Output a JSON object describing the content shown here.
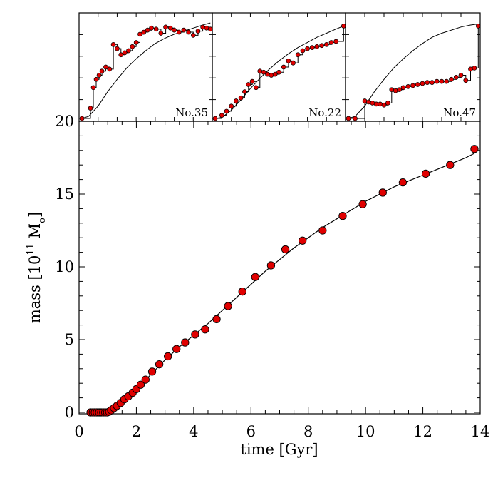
{
  "chart_data": [
    {
      "id": "main",
      "type": "scatter",
      "xlabel": "time [Gyr]",
      "ylabel": "mass [10^11 M_o]",
      "ylabel_parts": {
        "prefix": "mass [10",
        "sup": "11",
        "mid": " M",
        "sub": "o",
        "suffix": "]"
      },
      "xlim": [
        0,
        14
      ],
      "ylim": [
        0,
        20
      ],
      "xticks": [
        0,
        2,
        4,
        6,
        8,
        10,
        12,
        14
      ],
      "yticks": [
        0,
        5,
        10,
        15,
        20
      ],
      "marker_color": "#e00000",
      "points": [
        [
          0.4,
          0
        ],
        [
          0.48,
          0
        ],
        [
          0.55,
          0
        ],
        [
          0.62,
          0
        ],
        [
          0.7,
          0
        ],
        [
          0.77,
          0
        ],
        [
          0.84,
          0
        ],
        [
          0.91,
          0
        ],
        [
          0.98,
          0
        ],
        [
          1.05,
          0.05
        ],
        [
          1.12,
          0.15
        ],
        [
          1.22,
          0.3
        ],
        [
          1.32,
          0.45
        ],
        [
          1.45,
          0.65
        ],
        [
          1.58,
          0.9
        ],
        [
          1.72,
          1.1
        ],
        [
          1.87,
          1.35
        ],
        [
          2.0,
          1.6
        ],
        [
          2.15,
          1.9
        ],
        [
          2.32,
          2.25
        ],
        [
          2.55,
          2.8
        ],
        [
          2.8,
          3.3
        ],
        [
          3.1,
          3.85
        ],
        [
          3.4,
          4.35
        ],
        [
          3.7,
          4.8
        ],
        [
          4.05,
          5.35
        ],
        [
          4.4,
          5.7
        ],
        [
          4.8,
          6.4
        ],
        [
          5.2,
          7.3
        ],
        [
          5.7,
          8.3
        ],
        [
          6.15,
          9.3
        ],
        [
          6.7,
          10.1
        ],
        [
          7.2,
          11.2
        ],
        [
          7.8,
          11.8
        ],
        [
          8.5,
          12.5
        ],
        [
          9.2,
          13.5
        ],
        [
          9.9,
          14.3
        ],
        [
          10.6,
          15.1
        ],
        [
          11.3,
          15.8
        ],
        [
          12.1,
          16.4
        ],
        [
          12.95,
          17.0
        ],
        [
          13.8,
          18.1
        ]
      ],
      "curve": [
        [
          0.4,
          0
        ],
        [
          0.7,
          0
        ],
        [
          1.0,
          0.02
        ],
        [
          1.2,
          0.2
        ],
        [
          1.5,
          0.6
        ],
        [
          2.0,
          1.5
        ],
        [
          2.5,
          2.6
        ],
        [
          3.0,
          3.6
        ],
        [
          3.5,
          4.5
        ],
        [
          4.0,
          5.3
        ],
        [
          4.5,
          6.1
        ],
        [
          5.0,
          7.0
        ],
        [
          5.5,
          7.9
        ],
        [
          6.0,
          8.8
        ],
        [
          6.5,
          9.7
        ],
        [
          7.0,
          10.5
        ],
        [
          7.5,
          11.3
        ],
        [
          8.0,
          12.0
        ],
        [
          8.5,
          12.7
        ],
        [
          9.0,
          13.3
        ],
        [
          9.5,
          13.9
        ],
        [
          10.0,
          14.5
        ],
        [
          10.5,
          15.0
        ],
        [
          11.0,
          15.5
        ],
        [
          11.5,
          15.9
        ],
        [
          12.0,
          16.3
        ],
        [
          12.5,
          16.7
        ],
        [
          13.0,
          17.1
        ],
        [
          13.5,
          17.5
        ],
        [
          13.8,
          17.8
        ]
      ]
    },
    {
      "id": "inset1",
      "type": "line",
      "label": "No.35",
      "xlim": [
        0,
        14
      ],
      "ylim": [
        0,
        1
      ],
      "steps": [
        [
          0.3,
          0
        ],
        [
          1.2,
          0.1
        ],
        [
          1.5,
          0.3
        ],
        [
          1.8,
          0.38
        ],
        [
          2.1,
          0.42
        ],
        [
          2.4,
          0.46
        ],
        [
          2.8,
          0.5
        ],
        [
          3.2,
          0.48
        ],
        [
          3.6,
          0.72
        ],
        [
          4.0,
          0.68
        ],
        [
          4.4,
          0.62
        ],
        [
          4.8,
          0.64
        ],
        [
          5.2,
          0.66
        ],
        [
          5.6,
          0.7
        ],
        [
          6.0,
          0.74
        ],
        [
          6.4,
          0.82
        ],
        [
          6.8,
          0.84
        ],
        [
          7.2,
          0.86
        ],
        [
          7.6,
          0.88
        ],
        [
          8.1,
          0.87
        ],
        [
          8.6,
          0.83
        ],
        [
          9.1,
          0.89
        ],
        [
          9.6,
          0.88
        ],
        [
          10.0,
          0.86
        ],
        [
          10.5,
          0.84
        ],
        [
          11.0,
          0.86
        ],
        [
          11.5,
          0.84
        ],
        [
          12.0,
          0.81
        ],
        [
          12.5,
          0.85
        ],
        [
          13.0,
          0.89
        ],
        [
          13.4,
          0.88
        ],
        [
          13.8,
          0.87
        ]
      ],
      "curve": [
        [
          0.3,
          0
        ],
        [
          1.0,
          0.02
        ],
        [
          2.0,
          0.12
        ],
        [
          3.0,
          0.26
        ],
        [
          4.0,
          0.38
        ],
        [
          5.0,
          0.49
        ],
        [
          6.0,
          0.58
        ],
        [
          7.0,
          0.66
        ],
        [
          8.0,
          0.73
        ],
        [
          9.0,
          0.78
        ],
        [
          10.0,
          0.82
        ],
        [
          11.0,
          0.85
        ],
        [
          12.0,
          0.88
        ],
        [
          13.0,
          0.91
        ],
        [
          13.8,
          0.93
        ]
      ]
    },
    {
      "id": "inset2",
      "type": "line",
      "label": "No.22",
      "xlim": [
        0,
        14
      ],
      "ylim": [
        0,
        1
      ],
      "steps": [
        [
          0.3,
          0
        ],
        [
          1.0,
          0.03
        ],
        [
          1.5,
          0.07
        ],
        [
          2.0,
          0.12
        ],
        [
          2.5,
          0.17
        ],
        [
          3.0,
          0.2
        ],
        [
          3.4,
          0.26
        ],
        [
          3.8,
          0.33
        ],
        [
          4.2,
          0.36
        ],
        [
          4.6,
          0.3
        ],
        [
          5.0,
          0.46
        ],
        [
          5.4,
          0.45
        ],
        [
          5.8,
          0.43
        ],
        [
          6.2,
          0.42
        ],
        [
          6.6,
          0.43
        ],
        [
          7.0,
          0.45
        ],
        [
          7.5,
          0.5
        ],
        [
          8.0,
          0.56
        ],
        [
          8.5,
          0.54
        ],
        [
          9.0,
          0.62
        ],
        [
          9.5,
          0.66
        ],
        [
          10.0,
          0.68
        ],
        [
          10.5,
          0.69
        ],
        [
          11.0,
          0.7
        ],
        [
          11.5,
          0.71
        ],
        [
          12.0,
          0.72
        ],
        [
          12.5,
          0.74
        ],
        [
          13.0,
          0.75
        ],
        [
          13.8,
          0.9
        ]
      ],
      "curve": [
        [
          0.3,
          0
        ],
        [
          1.0,
          0.01
        ],
        [
          2.0,
          0.08
        ],
        [
          3.0,
          0.18
        ],
        [
          4.0,
          0.29
        ],
        [
          5.0,
          0.39
        ],
        [
          6.0,
          0.48
        ],
        [
          7.0,
          0.56
        ],
        [
          8.0,
          0.63
        ],
        [
          9.0,
          0.69
        ],
        [
          10.0,
          0.74
        ],
        [
          11.0,
          0.79
        ],
        [
          12.0,
          0.83
        ],
        [
          13.0,
          0.87
        ],
        [
          13.8,
          0.9
        ]
      ]
    },
    {
      "id": "inset3",
      "type": "line",
      "label": "No.47",
      "xlim": [
        0,
        14
      ],
      "ylim": [
        0,
        1
      ],
      "steps": [
        [
          0.3,
          0
        ],
        [
          1.0,
          0
        ],
        [
          2.0,
          0.17
        ],
        [
          2.4,
          0.16
        ],
        [
          2.8,
          0.15
        ],
        [
          3.2,
          0.14
        ],
        [
          3.6,
          0.14
        ],
        [
          4.0,
          0.13
        ],
        [
          4.4,
          0.15
        ],
        [
          4.8,
          0.28
        ],
        [
          5.2,
          0.27
        ],
        [
          5.6,
          0.28
        ],
        [
          6.0,
          0.3
        ],
        [
          6.5,
          0.31
        ],
        [
          7.0,
          0.32
        ],
        [
          7.5,
          0.33
        ],
        [
          8.0,
          0.34
        ],
        [
          8.5,
          0.35
        ],
        [
          9.0,
          0.35
        ],
        [
          9.5,
          0.36
        ],
        [
          10.0,
          0.36
        ],
        [
          10.5,
          0.36
        ],
        [
          11.0,
          0.38
        ],
        [
          11.5,
          0.4
        ],
        [
          12.0,
          0.42
        ],
        [
          12.5,
          0.37
        ],
        [
          13.0,
          0.48
        ],
        [
          13.4,
          0.49
        ],
        [
          13.8,
          0.9
        ]
      ],
      "curve": [
        [
          0.3,
          0
        ],
        [
          1.0,
          0.02
        ],
        [
          2.0,
          0.12
        ],
        [
          3.0,
          0.26
        ],
        [
          4.0,
          0.38
        ],
        [
          5.0,
          0.49
        ],
        [
          6.0,
          0.58
        ],
        [
          7.0,
          0.66
        ],
        [
          8.0,
          0.73
        ],
        [
          9.0,
          0.79
        ],
        [
          10.0,
          0.83
        ],
        [
          11.0,
          0.86
        ],
        [
          12.0,
          0.89
        ],
        [
          13.0,
          0.91
        ],
        [
          13.8,
          0.92
        ]
      ]
    }
  ]
}
